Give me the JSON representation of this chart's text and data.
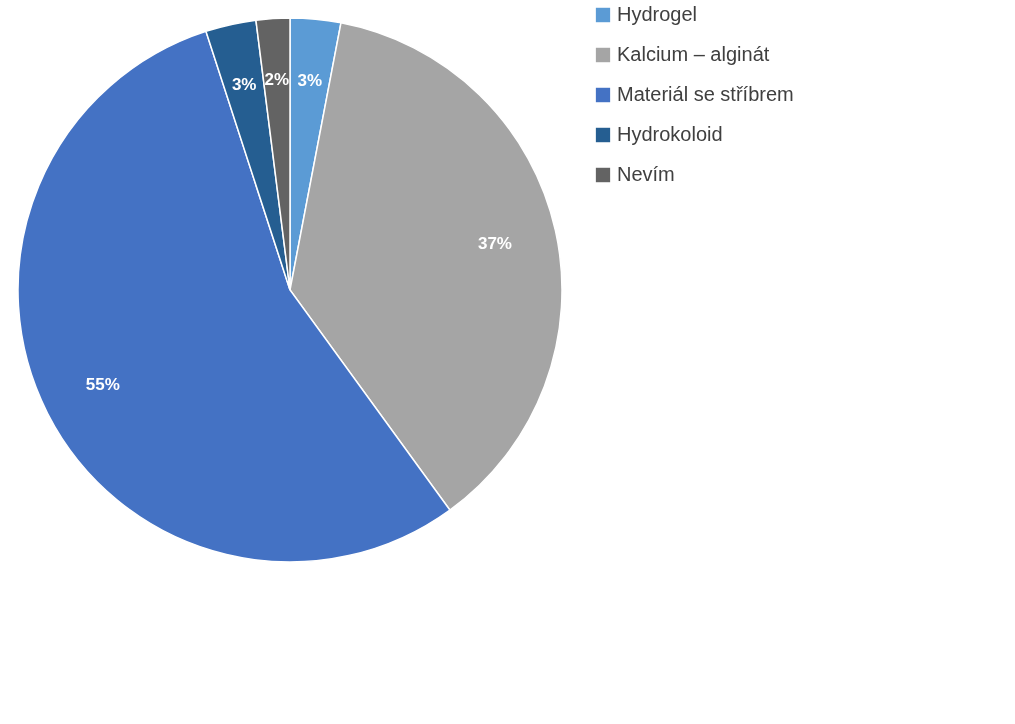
{
  "chart_data": {
    "type": "pie",
    "categories": [
      "Hydrogel",
      "Kalcium – alginát",
      "Materiál se stříbrem",
      "Hydrokoloid",
      "Nevím"
    ],
    "values": [
      3,
      37,
      55,
      3,
      2
    ],
    "colors": [
      "#5b9bd5",
      "#a5a5a5",
      "#4472c4",
      "#255e91",
      "#636363"
    ],
    "value_labels": [
      "3%",
      "37%",
      "55%",
      "3%",
      "2%"
    ],
    "legend": "right"
  }
}
